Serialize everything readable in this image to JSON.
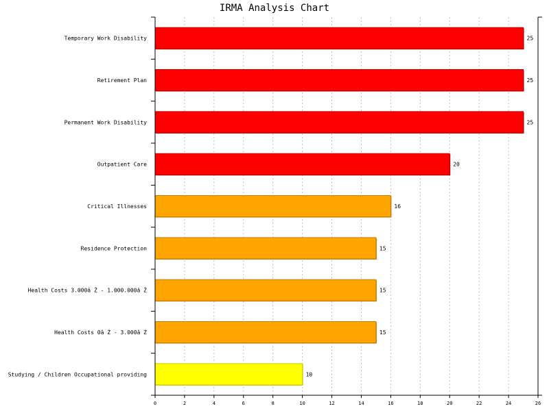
{
  "chart_data": {
    "type": "bar",
    "orientation": "horizontal",
    "title": "IRMA Analysis Chart",
    "xlabel": "",
    "ylabel": "",
    "xlim": [
      0,
      26
    ],
    "x_ticks": [
      0,
      2,
      4,
      6,
      8,
      10,
      12,
      14,
      16,
      18,
      20,
      22,
      24,
      26
    ],
    "grid": "vertical dashed",
    "categories": [
      "Temporary Work Disability",
      "Retirement Plan",
      "Permanent Work Disability",
      "Outpatient Care",
      "Critical Illnesses",
      "Residence Protection",
      "Health Costs 3.000â Ź - 1.000.000â Ź",
      "Health Costs 0â Ź - 3.000â Ź",
      "Studying / Children Occupational providing"
    ],
    "values": [
      25,
      25,
      25,
      20,
      16,
      15,
      15,
      15,
      10
    ],
    "bar_colors": [
      "#ff0000",
      "#ff0000",
      "#ff0000",
      "#ff0000",
      "#ffa500",
      "#ffa500",
      "#ffa500",
      "#ffa500",
      "#ffff00"
    ],
    "bar_edge_colors": [
      "#c00000",
      "#c00000",
      "#c00000",
      "#c00000",
      "#cc7a00",
      "#cc7a00",
      "#cc7a00",
      "#cc7a00",
      "#cccc00"
    ],
    "data_labels": [
      "25",
      "25",
      "25",
      "20",
      "16",
      "15",
      "15",
      "15",
      "10"
    ]
  }
}
